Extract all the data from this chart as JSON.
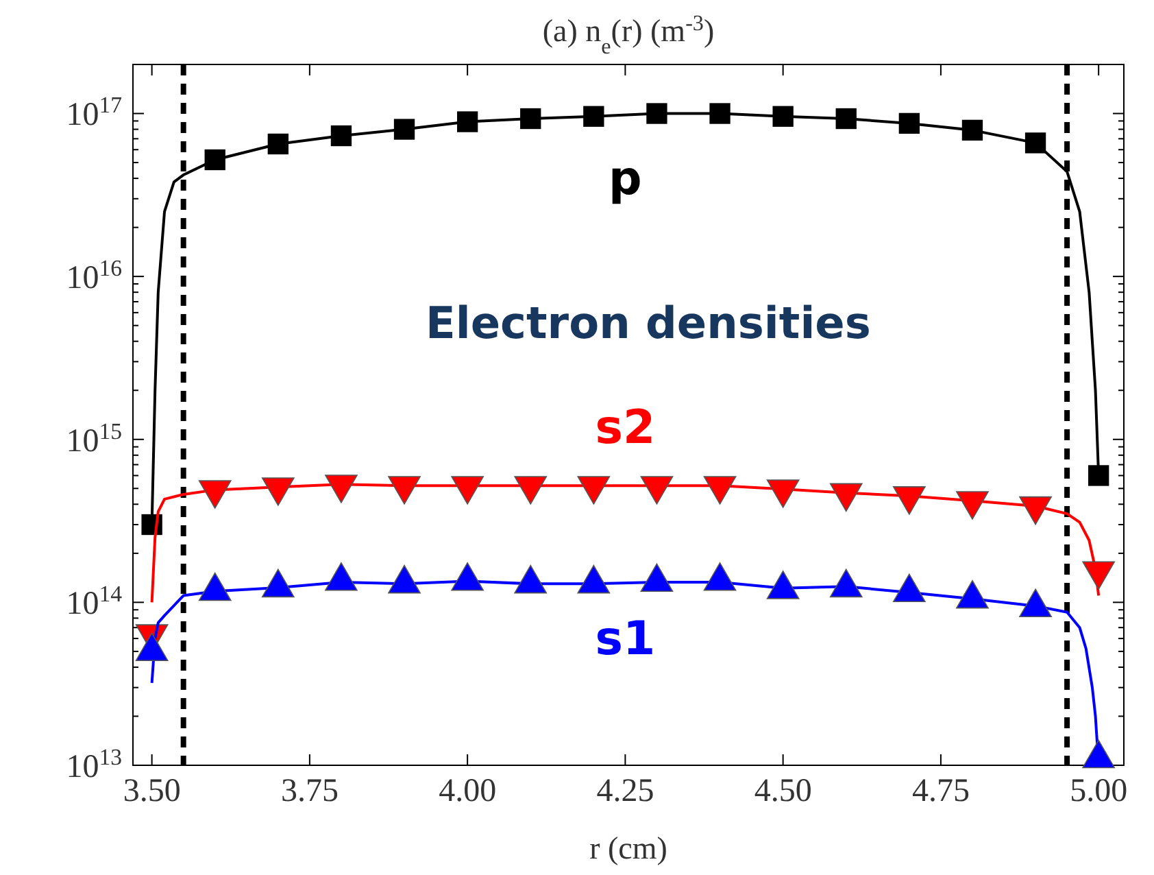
{
  "chart_data": {
    "type": "line",
    "title": "(a) n$_{e}$(r) (m$^{-3}$)",
    "xlabel": "r (cm)",
    "xlim": [
      3.47,
      5.04
    ],
    "xticks": [
      {
        "value": 3.5,
        "label": "3.50"
      },
      {
        "value": 3.75,
        "label": "3.75"
      },
      {
        "value": 4,
        "label": "4.00"
      },
      {
        "value": 4.25,
        "label": "4.25"
      },
      {
        "value": 4.5,
        "label": "4.50"
      },
      {
        "value": 4.75,
        "label": "4.75"
      },
      {
        "value": 5,
        "label": "5.00"
      }
    ],
    "log": "y",
    "ylim": [
      10000000000000.0,
      2e+17
    ],
    "yticks": [
      {
        "value": 10000000000000.0,
        "label": "10$^{13}$"
      },
      {
        "value": 100000000000000.0,
        "label": "10$^{14}$"
      },
      {
        "value": 1000000000000000.0,
        "label": "10$^{15}$"
      },
      {
        "value": 1e+16,
        "label": "10$^{16}$"
      },
      {
        "value": 1e+17,
        "label": "10$^{17}$"
      }
    ],
    "grid": false,
    "annotations": [
      "Electron densities"
    ],
    "ref_lines": [
      {
        "axis": "x",
        "value": 3.55,
        "label": null,
        "color": "#000000",
        "line_style": "dashed"
      },
      {
        "axis": "x",
        "value": 4.95,
        "label": null,
        "color": "#000000",
        "line_style": "dashed"
      }
    ],
    "series": [
      {
        "name": "p",
        "color": "#000000",
        "x": [
          3.5,
          3.505,
          3.51,
          3.52,
          3.535,
          3.55,
          3.6,
          3.7,
          3.8,
          3.9,
          4.0,
          4.1,
          4.2,
          4.3,
          4.4,
          4.5,
          4.6,
          4.7,
          4.8,
          4.9,
          4.95,
          4.97,
          4.985,
          4.995,
          5.0
        ],
        "values": [
          300000000000000.0,
          2000000000000000.0,
          8000000000000000.0,
          2.5e+16,
          3.8e+16,
          4.2e+16,
          5.2e+16,
          6.5e+16,
          7.3e+16,
          8e+16,
          8.9e+16,
          9.3e+16,
          9.6e+16,
          1e+17,
          1e+17,
          9.6e+16,
          9.3e+16,
          8.7e+16,
          7.9e+16,
          6.6e+16,
          4.4e+16,
          2.5e+16,
          8000000000000000.0,
          2000000000000000.0,
          600000000000000.0
        ]
      },
      {
        "type": "scatter",
        "marker": "square",
        "color": "#000000",
        "x": [
          3.5,
          3.6,
          3.7,
          3.8,
          3.9,
          4.0,
          4.1,
          4.2,
          4.3,
          4.4,
          4.5,
          4.6,
          4.7,
          4.8,
          4.9,
          5.0
        ],
        "values": [
          300000000000000.0,
          5.2e+16,
          6.5e+16,
          7.3e+16,
          8e+16,
          8.9e+16,
          9.3e+16,
          9.6e+16,
          1e+17,
          1e+17,
          9.6e+16,
          9.3e+16,
          8.7e+16,
          7.9e+16,
          6.6e+16,
          600000000000000.0
        ]
      },
      {
        "name": "s2",
        "color": "#ff0000",
        "x": [
          3.5,
          3.505,
          3.51,
          3.52,
          3.55,
          3.6,
          3.7,
          3.8,
          3.9,
          4.0,
          4.1,
          4.2,
          4.3,
          4.4,
          4.5,
          4.6,
          4.7,
          4.8,
          4.9,
          4.95,
          4.97,
          4.985,
          4.995,
          5.0
        ],
        "values": [
          100000000000000.0,
          250000000000000.0,
          360000000000000.0,
          430000000000000.0,
          460000000000000.0,
          490000000000000.0,
          510000000000000.0,
          530000000000000.0,
          520000000000000.0,
          520000000000000.0,
          520000000000000.0,
          520000000000000.0,
          520000000000000.0,
          520000000000000.0,
          495000000000000.0,
          470000000000000.0,
          450000000000000.0,
          420000000000000.0,
          390000000000000.0,
          350000000000000.0,
          310000000000000.0,
          240000000000000.0,
          160000000000000.0,
          110000000000000.0
        ]
      },
      {
        "type": "scatter",
        "marker": "triangle-down",
        "color": "#ff0000",
        "x": [
          3.5,
          3.6,
          3.7,
          3.8,
          3.9,
          4.0,
          4.1,
          4.2,
          4.3,
          4.4,
          4.5,
          4.6,
          4.7,
          4.8,
          4.9,
          5.0
        ],
        "values": [
          64000000000000.0,
          490000000000000.0,
          510000000000000.0,
          530000000000000.0,
          520000000000000.0,
          520000000000000.0,
          520000000000000.0,
          520000000000000.0,
          520000000000000.0,
          520000000000000.0,
          495000000000000.0,
          470000000000000.0,
          450000000000000.0,
          420000000000000.0,
          390000000000000.0,
          156000000000000.0
        ]
      },
      {
        "name": "s1",
        "color": "#0000ff",
        "x": [
          3.5,
          3.505,
          3.51,
          3.52,
          3.55,
          3.6,
          3.7,
          3.8,
          3.9,
          4.0,
          4.1,
          4.2,
          4.3,
          4.4,
          4.5,
          4.6,
          4.7,
          4.8,
          4.9,
          4.95,
          4.97,
          4.98,
          4.99,
          4.995,
          5.0
        ],
        "values": [
          32000000000000.0,
          60000000000000.0,
          75000000000000.0,
          83000000000000.0,
          110000000000000.0,
          117000000000000.0,
          123000000000000.0,
          133000000000000.0,
          130000000000000.0,
          135000000000000.0,
          130000000000000.0,
          130000000000000.0,
          133000000000000.0,
          133000000000000.0,
          122000000000000.0,
          125000000000000.0,
          115000000000000.0,
          105000000000000.0,
          95000000000000.0,
          87000000000000.0,
          70000000000000.0,
          52000000000000.0,
          30000000000000.0,
          20000000000000.0,
          10000000000000.0
        ]
      },
      {
        "type": "scatter",
        "marker": "triangle",
        "color": "#0000ff",
        "x": [
          3.5,
          3.6,
          3.7,
          3.8,
          3.9,
          4.0,
          4.1,
          4.2,
          4.3,
          4.4,
          4.5,
          4.6,
          4.7,
          4.8,
          4.9,
          5.0
        ],
        "values": [
          50000000000000.0,
          117000000000000.0,
          123000000000000.0,
          135000000000000.0,
          130000000000000.0,
          135000000000000.0,
          130000000000000.0,
          130000000000000.0,
          133000000000000.0,
          135000000000000.0,
          120000000000000.0,
          123000000000000.0,
          115000000000000.0,
          105000000000000.0,
          93000000000000.0,
          11000000000000.0
        ]
      }
    ]
  }
}
